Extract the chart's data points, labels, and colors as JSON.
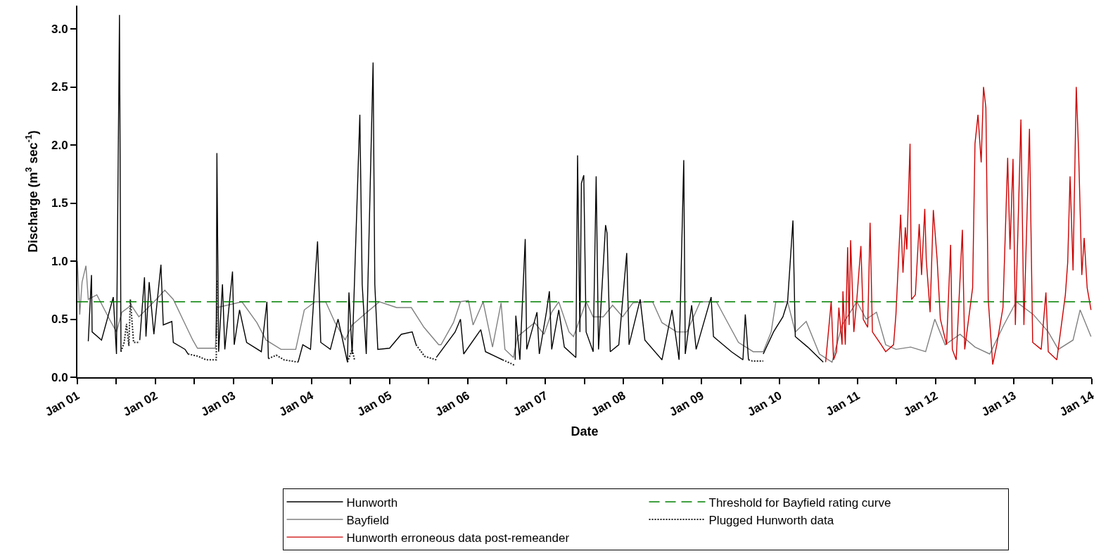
{
  "chart_data": {
    "type": "line",
    "xlabel": "Date",
    "ylabel": "Discharge (m$^{3}$ sec$^{-1}$)",
    "xlim": [
      "2001-01-01",
      "2014-01-01"
    ],
    "ylim": [
      0,
      3.2
    ],
    "xticks": [
      {
        "value": "2001-01-01",
        "label": "Jan 01"
      },
      {
        "value": "2001-07-02",
        "label": null
      },
      {
        "value": "2002-01-01",
        "label": "Jan 02"
      },
      {
        "value": "2002-07-02",
        "label": null
      },
      {
        "value": "2003-01-01",
        "label": "Jan 03"
      },
      {
        "value": "2003-07-02",
        "label": null
      },
      {
        "value": "2004-01-01",
        "label": "Jan 04"
      },
      {
        "value": "2004-07-02",
        "label": null
      },
      {
        "value": "2005-01-01",
        "label": "Jan 05"
      },
      {
        "value": "2005-07-02",
        "label": null
      },
      {
        "value": "2006-01-01",
        "label": "Jan 06"
      },
      {
        "value": "2006-07-02",
        "label": null
      },
      {
        "value": "2007-01-01",
        "label": "Jan 07"
      },
      {
        "value": "2007-07-02",
        "label": null
      },
      {
        "value": "2008-01-01",
        "label": "Jan 08"
      },
      {
        "value": "2008-07-02",
        "label": null
      },
      {
        "value": "2009-01-01",
        "label": "Jan 09"
      },
      {
        "value": "2009-07-02",
        "label": null
      },
      {
        "value": "2010-01-01",
        "label": "Jan 10"
      },
      {
        "value": "2010-07-02",
        "label": null
      },
      {
        "value": "2011-01-01",
        "label": "Jan 11"
      },
      {
        "value": "2011-07-02",
        "label": null
      },
      {
        "value": "2012-01-01",
        "label": "Jan 12"
      },
      {
        "value": "2012-07-02",
        "label": null
      },
      {
        "value": "2013-01-01",
        "label": "Jan 13"
      },
      {
        "value": "2013-07-02",
        "label": null
      },
      {
        "value": "2014-01-01",
        "label": "Jan 14"
      }
    ],
    "yticks": [
      {
        "value": 0,
        "label": "0.0"
      },
      {
        "value": 0.5,
        "label": "0.5"
      },
      {
        "value": 1,
        "label": "1.0"
      },
      {
        "value": 1.5,
        "label": "1.5"
      },
      {
        "value": 2,
        "label": "2.0"
      },
      {
        "value": 2.5,
        "label": "2.5"
      },
      {
        "value": 3,
        "label": "3.0"
      }
    ],
    "legend": "bottom",
    "marker": "none",
    "ref_lines": [
      {
        "axis": "y",
        "value": 0.65,
        "label": "Threshold for Bayfield rating curve",
        "color": "#008000",
        "line_style": "dashed"
      }
    ],
    "series": [
      {
        "name": "Bayfield",
        "color": "#808080",
        "line_style": "solid",
        "x": [
          "2001-01-01",
          "2001-01-12",
          "2001-01-23",
          "2001-02-10",
          "2001-02-21",
          "2001-04-02",
          "2001-05-31",
          "2001-07-03",
          "2001-07-28",
          "2001-09-10",
          "2001-10-16",
          "2002-01-05",
          "2002-02-14",
          "2002-03-26",
          "2002-05-09",
          "2002-06-25",
          "2002-07-17",
          "2002-10-09",
          "2002-10-16",
          "2003-02-10",
          "2003-04-21",
          "2003-06-03",
          "2003-08-12",
          "2003-10-20",
          "2003-11-29",
          "2003-12-28",
          "2004-01-19",
          "2004-03-08",
          "2004-04-21",
          "2004-06-07",
          "2004-07-10",
          "2004-09-17",
          "2004-11-15",
          "2005-02-03",
          "2005-04-13",
          "2005-06-11",
          "2005-08-19",
          "2005-08-30",
          "2005-10-27",
          "2005-11-29",
          "2006-01-05",
          "2006-01-27",
          "2006-03-15",
          "2006-04-28",
          "2006-06-07",
          "2006-06-25",
          "2006-08-04",
          "2006-08-23",
          "2006-11-11",
          "2006-12-25",
          "2007-01-30",
          "2007-03-04",
          "2007-04-21",
          "2007-05-12",
          "2007-07-10",
          "2007-08-12",
          "2007-09-28",
          "2007-11-11",
          "2007-12-28",
          "2008-02-14",
          "2008-04-10",
          "2008-05-16",
          "2008-06-29",
          "2008-09-06",
          "2008-10-24",
          "2008-12-25",
          "2009-03-11",
          "2009-04-24",
          "2009-06-22",
          "2009-08-30",
          "2009-10-16",
          "2009-11-22",
          "2009-12-14",
          "2010-02-07",
          "2010-03-15",
          "2010-05-05",
          "2010-07-06",
          "2010-09-03",
          "2010-10-20",
          "2010-12-28",
          "2011-02-10",
          "2011-03-30",
          "2011-05-12",
          "2011-06-29",
          "2011-09-06",
          "2011-11-15",
          "2011-12-28",
          "2012-02-14",
          "2012-04-24",
          "2012-07-03",
          "2012-09-10",
          "2012-11-15",
          "2013-01-12",
          "2013-04-02",
          "2013-06-11",
          "2013-07-28",
          "2013-10-05",
          "2013-11-07",
          "2013-12-28"
        ],
        "values": [
          1.0,
          0.54,
          0.82,
          0.96,
          0.67,
          0.71,
          0.5,
          0.39,
          0.56,
          0.62,
          0.52,
          0.67,
          0.75,
          0.67,
          0.5,
          0.32,
          0.25,
          0.25,
          0.6,
          0.65,
          0.47,
          0.32,
          0.24,
          0.24,
          0.58,
          0.62,
          0.65,
          0.65,
          0.47,
          0.32,
          0.45,
          0.56,
          0.65,
          0.6,
          0.6,
          0.43,
          0.28,
          0.28,
          0.47,
          0.65,
          0.66,
          0.45,
          0.65,
          0.26,
          0.64,
          0.24,
          0.17,
          0.35,
          0.47,
          0.37,
          0.56,
          0.65,
          0.39,
          0.35,
          0.65,
          0.52,
          0.52,
          0.62,
          0.52,
          0.64,
          0.65,
          0.65,
          0.47,
          0.39,
          0.39,
          0.65,
          0.65,
          0.5,
          0.3,
          0.22,
          0.22,
          0.39,
          0.65,
          0.65,
          0.39,
          0.48,
          0.2,
          0.13,
          0.45,
          0.65,
          0.5,
          0.56,
          0.28,
          0.24,
          0.26,
          0.22,
          0.5,
          0.28,
          0.37,
          0.26,
          0.2,
          0.45,
          0.65,
          0.54,
          0.39,
          0.24,
          0.32,
          0.58,
          0.35
        ]
      },
      {
        "name": "Hunworth",
        "color": "#000000",
        "line_style": "solid",
        "x": [
          "2001-02-21",
          "2001-03-08",
          "2001-03-11",
          "2001-04-24",
          "2001-06-18",
          "2001-07-03",
          "2001-07-17",
          "2001-07-24",
          null,
          "2001-10-20",
          "2001-11-11",
          "2001-11-18",
          "2001-12-03",
          "2001-12-25",
          "2002-01-27",
          "2002-02-07",
          "2002-03-19",
          "2002-03-26",
          "2002-05-20",
          "2002-06-03",
          null,
          "2002-10-13",
          "2002-10-16",
          "2002-10-24",
          "2002-11-11",
          "2002-11-22",
          "2002-12-28",
          "2003-01-05",
          "2003-01-30",
          "2003-03-04",
          "2003-05-12",
          "2003-06-07",
          "2003-06-14",
          null,
          "2003-10-31",
          "2003-11-22",
          "2003-12-28",
          "2004-01-30",
          "2004-02-14",
          "2004-03-30",
          "2004-05-05",
          "2004-06-18",
          "2004-06-25",
          "2004-07-10",
          "2004-08-15",
          "2004-08-26",
          "2004-09-14",
          "2004-10-16",
          "2004-10-24",
          "2004-11-07",
          "2005-01-01",
          "2005-02-25",
          "2005-04-17",
          "2005-05-05",
          null,
          "2005-08-08",
          "2005-11-04",
          "2005-11-29",
          "2005-12-14",
          "2006-03-04",
          "2006-03-26",
          "2006-06-14",
          null,
          "2006-08-12",
          "2006-08-15",
          "2006-09-03",
          "2006-09-28",
          "2006-10-05",
          "2006-11-22",
          "2006-12-03",
          "2007-01-05",
          "2007-01-19",
          "2007-01-30",
          "2007-03-04",
          "2007-03-30",
          "2007-05-23",
          "2007-05-31",
          "2007-06-11",
          "2007-06-18",
          "2007-06-29",
          "2007-07-10",
          "2007-08-12",
          "2007-08-26",
          "2007-09-06",
          "2007-10-09",
          "2007-10-16",
          "2007-10-31",
          "2007-12-10",
          "2008-01-16",
          "2008-01-27",
          "2008-03-19",
          "2008-04-10",
          "2008-06-29",
          "2008-08-15",
          "2008-09-17",
          "2008-10-09",
          "2008-10-16",
          "2008-11-15",
          "2008-12-06",
          "2009-02-14",
          "2009-02-25",
          "2009-05-20",
          "2009-07-13",
          "2009-07-24",
          "2009-08-08",
          null,
          "2009-10-16",
          "2009-12-03",
          "2010-01-16",
          "2010-02-07",
          "2010-03-04",
          "2010-03-15",
          "2010-05-12",
          "2010-07-24"
        ],
        "values": [
          0.31,
          0.88,
          0.39,
          0.32,
          0.69,
          0.2,
          3.12,
          0.22,
          null,
          0.32,
          0.86,
          0.35,
          0.82,
          0.37,
          0.97,
          0.45,
          0.48,
          0.3,
          0.24,
          0.2,
          null,
          0.35,
          1.93,
          0.22,
          0.8,
          0.24,
          0.91,
          0.28,
          0.58,
          0.3,
          0.22,
          0.65,
          0.16,
          null,
          0.13,
          0.28,
          0.24,
          1.17,
          0.3,
          0.24,
          0.5,
          0.13,
          0.73,
          0.2,
          2.26,
          0.8,
          0.2,
          2.71,
          0.8,
          0.24,
          0.25,
          0.37,
          0.39,
          0.28,
          null,
          0.17,
          0.39,
          0.5,
          0.2,
          0.41,
          0.22,
          0.15,
          null,
          0.15,
          0.53,
          0.15,
          1.19,
          0.24,
          0.56,
          0.2,
          0.56,
          0.74,
          0.24,
          0.58,
          0.26,
          0.17,
          1.91,
          0.39,
          1.67,
          1.74,
          0.39,
          0.22,
          1.73,
          0.24,
          1.31,
          1.24,
          0.22,
          0.28,
          1.07,
          0.28,
          0.67,
          0.32,
          0.15,
          0.58,
          0.15,
          1.87,
          0.2,
          0.62,
          0.24,
          0.69,
          0.35,
          0.22,
          0.15,
          0.54,
          0.15,
          null,
          0.2,
          0.39,
          0.52,
          0.65,
          1.35,
          0.35,
          0.26,
          0.13
        ]
      },
      {
        "name": "Plugged Hunworth data",
        "color": "#202020",
        "line_style": "dotted",
        "x": [
          "2001-07-24",
          "2001-08-08",
          "2001-08-19",
          "2001-08-30",
          "2001-09-06",
          "2001-09-21",
          "2001-10-20",
          null,
          "2002-06-03",
          "2002-07-21",
          "2002-08-26",
          "2002-10-13",
          "2002-10-16",
          null,
          "2003-06-14",
          "2003-07-21",
          "2003-08-26",
          "2003-10-31",
          null,
          "2004-06-18",
          "2004-07-10",
          "2004-07-21",
          null,
          "2005-05-05",
          "2005-06-14",
          "2005-08-08",
          null,
          "2006-06-14",
          "2006-07-21",
          "2006-08-12",
          null,
          "2009-08-08",
          "2009-08-26",
          "2009-10-16"
        ],
        "values": [
          0.22,
          0.3,
          0.46,
          0.27,
          0.67,
          0.3,
          0.3,
          null,
          0.2,
          0.18,
          0.15,
          0.15,
          0.84,
          null,
          0.16,
          0.19,
          0.15,
          0.13,
          null,
          0.13,
          0.24,
          0.15,
          null,
          0.28,
          0.18,
          0.15,
          null,
          0.15,
          0.12,
          0.1,
          null,
          0.15,
          0.14,
          0.14
        ]
      },
      {
        "name": "Hunworth erroneous data post-remeander",
        "color": "#cc0000",
        "line_style": "solid",
        "x": [
          "2010-08-04",
          "2010-08-30",
          "2010-09-10",
          "2010-09-24",
          "2010-10-05",
          "2010-10-20",
          "2010-10-24",
          "2010-11-04",
          "2010-11-15",
          "2010-11-22",
          "2010-11-29",
          "2010-12-14",
          "2010-12-28",
          "2011-01-16",
          "2011-01-27",
          "2011-02-17",
          "2011-02-28",
          "2011-03-11",
          "2011-04-21",
          "2011-05-12",
          "2011-06-18",
          "2011-06-29",
          "2011-07-21",
          "2011-08-01",
          "2011-08-12",
          "2011-08-19",
          "2011-09-03",
          "2011-09-10",
          "2011-09-28",
          "2011-10-16",
          "2011-10-27",
          "2011-11-11",
          "2011-11-18",
          "2011-12-06",
          "2011-12-21",
          "2012-01-08",
          "2012-01-23",
          "2012-02-21",
          "2012-03-11",
          "2012-03-19",
          "2012-04-06",
          "2012-05-05",
          "2012-05-16",
          "2012-06-22",
          "2012-07-03",
          "2012-07-17",
          "2012-08-01",
          "2012-08-12",
          "2012-08-23",
          "2012-09-03",
          "2012-09-24",
          "2012-10-13",
          "2012-11-11",
          "2012-12-03",
          "2012-12-14",
          "2012-12-28",
          "2013-01-08",
          "2013-02-03",
          "2013-02-17",
          "2013-03-15",
          "2013-03-30",
          "2013-05-09",
          "2013-05-31",
          "2013-06-11",
          "2013-07-21",
          "2013-08-30",
          "2013-09-10",
          "2013-09-21",
          "2013-10-05",
          "2013-10-20",
          "2013-10-31",
          "2013-11-15",
          "2013-11-26",
          "2013-12-10",
          "2013-12-28"
        ],
        "values": [
          0.13,
          0.65,
          0.15,
          0.22,
          0.6,
          0.28,
          0.74,
          0.28,
          1.12,
          0.45,
          1.18,
          0.39,
          0.67,
          1.13,
          0.5,
          0.43,
          1.33,
          0.39,
          0.28,
          0.22,
          0.28,
          0.54,
          1.4,
          0.9,
          1.29,
          1.1,
          2.01,
          0.67,
          0.71,
          1.32,
          0.88,
          1.45,
          1.01,
          0.56,
          1.44,
          1.01,
          0.5,
          0.28,
          1.14,
          0.24,
          0.15,
          1.27,
          0.24,
          0.77,
          2.01,
          2.26,
          1.85,
          2.5,
          2.32,
          0.67,
          0.11,
          0.28,
          0.6,
          1.89,
          1.1,
          1.88,
          0.45,
          2.22,
          0.45,
          2.14,
          0.3,
          0.24,
          0.73,
          0.22,
          0.15,
          0.71,
          0.99,
          1.73,
          0.92,
          2.5,
          1.94,
          0.88,
          1.2,
          0.77,
          0.58
        ]
      }
    ]
  }
}
